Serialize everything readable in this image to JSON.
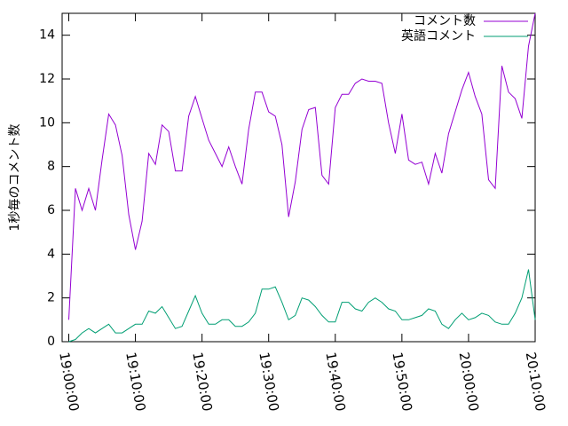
{
  "chart_data": {
    "type": "line",
    "ylabel": "1秒毎のコメント数",
    "x": [
      "19:00:00",
      "19:01:00",
      "19:02:00",
      "19:03:00",
      "19:04:00",
      "19:05:00",
      "19:06:00",
      "19:07:00",
      "19:08:00",
      "19:09:00",
      "19:10:00",
      "19:11:00",
      "19:12:00",
      "19:13:00",
      "19:14:00",
      "19:15:00",
      "19:16:00",
      "19:17:00",
      "19:18:00",
      "19:19:00",
      "19:20:00",
      "19:21:00",
      "19:22:00",
      "19:23:00",
      "19:24:00",
      "19:25:00",
      "19:26:00",
      "19:27:00",
      "19:28:00",
      "19:29:00",
      "19:30:00",
      "19:31:00",
      "19:32:00",
      "19:33:00",
      "19:34:00",
      "19:35:00",
      "19:36:00",
      "19:37:00",
      "19:38:00",
      "19:39:00",
      "19:40:00",
      "19:41:00",
      "19:42:00",
      "19:43:00",
      "19:44:00",
      "19:45:00",
      "19:46:00",
      "19:47:00",
      "19:48:00",
      "19:49:00",
      "19:50:00",
      "19:51:00",
      "19:52:00",
      "19:53:00",
      "19:54:00",
      "19:55:00",
      "19:56:00",
      "19:57:00",
      "19:58:00",
      "19:59:00",
      "20:00:00",
      "20:01:00",
      "20:02:00",
      "20:03:00",
      "20:04:00",
      "20:05:00",
      "20:06:00",
      "20:07:00",
      "20:08:00",
      "20:09:00",
      "20:10:00"
    ],
    "series": [
      {
        "name": "コメント数",
        "color": "#9400d3",
        "values": [
          1.0,
          7.0,
          6.0,
          7.0,
          6.0,
          8.3,
          10.4,
          9.9,
          8.5,
          5.8,
          4.2,
          5.5,
          8.6,
          8.1,
          9.9,
          9.6,
          7.8,
          7.8,
          10.3,
          11.2,
          10.2,
          9.2,
          8.6,
          8.0,
          8.9,
          8.0,
          7.2,
          9.7,
          11.4,
          11.4,
          10.5,
          10.3,
          9.0,
          5.7,
          7.3,
          9.7,
          10.6,
          10.7,
          7.6,
          7.2,
          10.7,
          11.3,
          11.3,
          11.8,
          12.0,
          11.9,
          11.9,
          11.8,
          10.0,
          8.6,
          10.4,
          8.3,
          8.1,
          8.2,
          7.2,
          8.6,
          7.7,
          9.5,
          10.5,
          11.5,
          12.3,
          11.2,
          10.4,
          7.4,
          7.0,
          12.6,
          11.4,
          11.1,
          10.2,
          13.5,
          15.0
        ]
      },
      {
        "name": "英語コメント",
        "color": "#009e73",
        "values": [
          0,
          0.1,
          0.4,
          0.6,
          0.4,
          0.6,
          0.8,
          0.4,
          0.4,
          0.6,
          0.8,
          0.8,
          1.4,
          1.3,
          1.6,
          1.1,
          0.6,
          0.7,
          1.4,
          2.1,
          1.3,
          0.8,
          0.8,
          1.0,
          1.0,
          0.7,
          0.7,
          0.9,
          1.3,
          2.4,
          2.4,
          2.5,
          1.8,
          1.0,
          1.2,
          2.0,
          1.9,
          1.6,
          1.2,
          0.9,
          0.9,
          1.8,
          1.8,
          1.5,
          1.4,
          1.8,
          2.0,
          1.8,
          1.5,
          1.4,
          1.0,
          1.0,
          1.1,
          1.2,
          1.5,
          1.4,
          0.8,
          0.6,
          1.0,
          1.3,
          1.0,
          1.1,
          1.3,
          1.2,
          0.9,
          0.8,
          0.8,
          1.3,
          2.0,
          3.3,
          1.0
        ]
      }
    ],
    "xlim": [
      "18:59:00",
      "20:10:00"
    ],
    "xticks": [
      "19:00:00",
      "19:10:00",
      "19:20:00",
      "19:30:00",
      "19:40:00",
      "19:50:00",
      "20:00:00",
      "20:10:00"
    ],
    "ylim": [
      0,
      15
    ],
    "yticks": [
      0,
      2,
      4,
      6,
      8,
      10,
      12,
      14
    ],
    "legend": "upper right"
  }
}
